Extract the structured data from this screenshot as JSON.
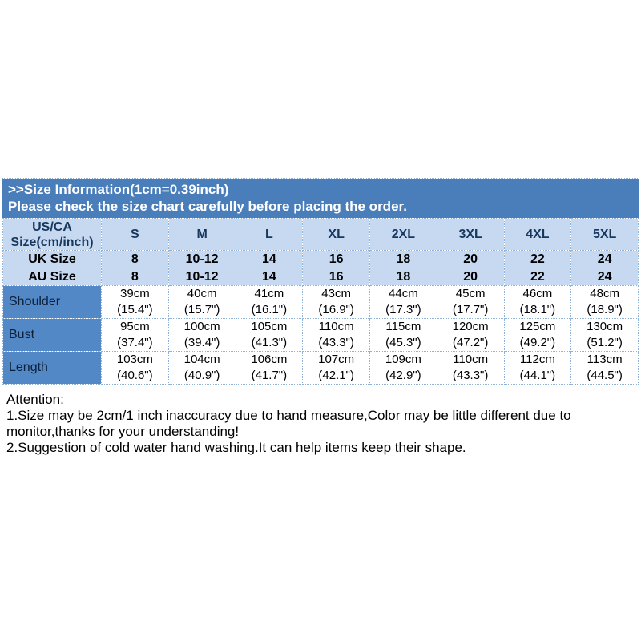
{
  "banner": {
    "line1": ">>Size Information(1cm=0.39inch)",
    "line2": "Please check the size chart carefully before placing the order."
  },
  "chart_data": {
    "type": "table",
    "corner_line1": "US/CA",
    "corner_line2": "Size(cm/inch)",
    "size_columns": [
      "S",
      "M",
      "L",
      "XL",
      "2XL",
      "3XL",
      "4XL",
      "5XL"
    ],
    "size_rows": [
      {
        "label": "UK Size",
        "values": [
          "8",
          "10-12",
          "14",
          "16",
          "18",
          "20",
          "22",
          "24"
        ]
      },
      {
        "label": "AU Size",
        "values": [
          "8",
          "10-12",
          "14",
          "16",
          "18",
          "20",
          "22",
          "24"
        ]
      }
    ],
    "measure_rows": [
      {
        "label": "Shoulder",
        "cm": [
          "39cm",
          "40cm",
          "41cm",
          "43cm",
          "44cm",
          "45cm",
          "46cm",
          "48cm"
        ],
        "inch": [
          "(15.4\")",
          "(15.7\")",
          "(16.1\")",
          "(16.9\")",
          "(17.3\")",
          "(17.7\")",
          "(18.1\")",
          "(18.9\")"
        ]
      },
      {
        "label": "Bust",
        "cm": [
          "95cm",
          "100cm",
          "105cm",
          "110cm",
          "115cm",
          "120cm",
          "125cm",
          "130cm"
        ],
        "inch": [
          "(37.4\")",
          "(39.4\")",
          "(41.3\")",
          "(43.3\")",
          "(45.3\")",
          "(47.2\")",
          "(49.2\")",
          "(51.2\")"
        ]
      },
      {
        "label": "Length",
        "cm": [
          "103cm",
          "104cm",
          "106cm",
          "107cm",
          "109cm",
          "110cm",
          "112cm",
          "113cm"
        ],
        "inch": [
          "(40.6\")",
          "(40.9\")",
          "(41.7\")",
          "(42.1\")",
          "(42.9\")",
          "(43.3\")",
          "(44.1\")",
          "(44.5\")"
        ]
      }
    ]
  },
  "attention": {
    "title": "Attention:",
    "note1": "1.Size may be 2cm/1 inch inaccuracy due to hand measure,Color may be little different due to monitor,thanks for your understanding!",
    "note2": "2.Suggestion of cold water hand washing.It can help items keep their shape."
  },
  "colors": {
    "banner_bg": "#4a7ebb",
    "banner_text": "#ffffff",
    "light_row_bg": "#c6d9f1",
    "label_column_bg": "#5288c5",
    "grid_dotted": "#8fb2d9",
    "header_text": "#17375d",
    "body_text": "#000000"
  }
}
